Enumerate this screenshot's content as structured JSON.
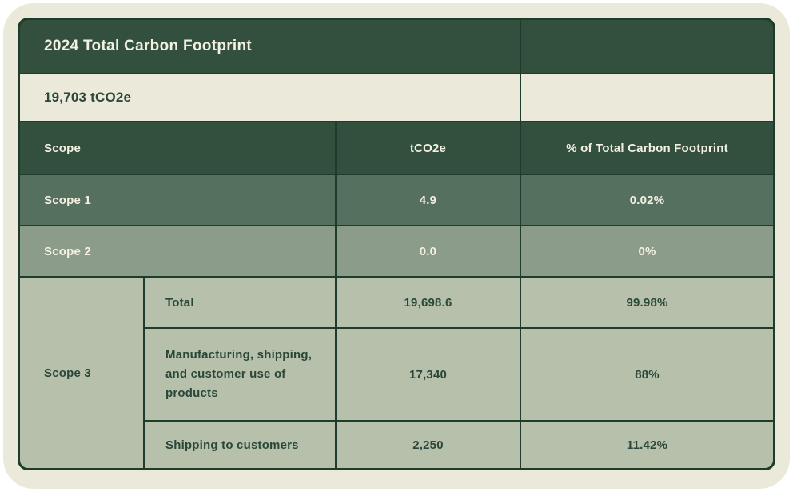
{
  "header": {
    "title": "2024 Total Carbon Footprint",
    "total_value": "19,703 tCO2e"
  },
  "table": {
    "columns": [
      "Scope",
      "tCO2e",
      "% of Total Carbon Footprint"
    ],
    "rows": [
      {
        "scope": "Scope 1",
        "tco2e": "4.9",
        "pct": "0.02%"
      },
      {
        "scope": "Scope 2",
        "tco2e": "0.0",
        "pct": "0%"
      }
    ],
    "scope3": {
      "label": "Scope 3",
      "rows": [
        {
          "label": "Total",
          "tco2e": "19,698.6",
          "pct": "99.98%"
        },
        {
          "label": "Manufacturing, shipping, and customer use of products",
          "tco2e": "17,340",
          "pct": "88%"
        },
        {
          "label": "Shipping to customers",
          "tco2e": "2,250",
          "pct": "11.42%"
        }
      ]
    }
  },
  "chart_data": {
    "type": "table",
    "title": "2024 Total Carbon Footprint",
    "total": "19,703 tCO2e",
    "columns": [
      "Scope",
      "tCO2e",
      "% of Total Carbon Footprint"
    ],
    "rows": [
      [
        "Scope 1",
        4.9,
        "0.02%"
      ],
      [
        "Scope 2",
        0.0,
        "0%"
      ],
      [
        "Scope 3 - Total",
        19698.6,
        "99.98%"
      ],
      [
        "Scope 3 - Manufacturing, shipping, and customer use of products",
        17340,
        "88%"
      ],
      [
        "Scope 3 - Shipping to customers",
        2250,
        "11.42%"
      ]
    ]
  },
  "colors": {
    "card_background": "#ebe9d9",
    "page_background": "#ffffff",
    "header_green": "#33503e",
    "border_green": "#1e3c2c",
    "scope1_row": "#56705f",
    "scope2_row": "#8b9c8a",
    "scope3_row": "#b6c0ab",
    "text_light": "#f3f0e2",
    "text_dark": "#2a4839"
  }
}
